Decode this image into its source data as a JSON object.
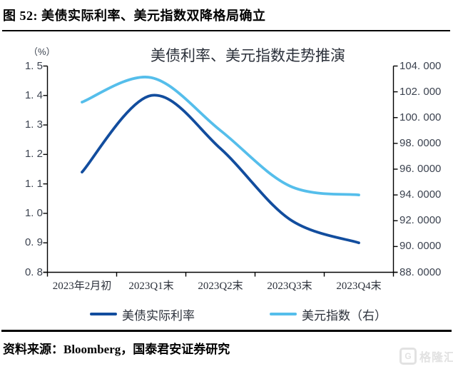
{
  "figure": {
    "caption": "图 52:  美债实际利率、美元指数双降格局确立",
    "source": "资料来源：Bloomberg，国泰君安证券研究"
  },
  "chart_data": {
    "type": "line",
    "title": "美债利率、美元指数走势推演",
    "unit_label": "（%）",
    "categories": [
      "2023年2月初",
      "2023Q1末",
      "2023Q2末",
      "2023Q3末",
      "2023Q4末"
    ],
    "series": [
      {
        "name": "美债实际利率",
        "axis": "left",
        "color": "#124d9e",
        "values": [
          1.14,
          1.4,
          1.22,
          0.98,
          0.9
        ]
      },
      {
        "name": "美元指数（右）",
        "axis": "right",
        "color": "#55beeb",
        "values": [
          101.2,
          103.1,
          99.0,
          94.7,
          94.0
        ]
      }
    ],
    "left_axis": {
      "min": 0.8,
      "max": 1.5,
      "ticks": [
        "1. 5",
        "1. 4",
        "1. 3",
        "1. 2",
        "1. 1",
        "1. 0",
        "0. 9",
        "0. 8"
      ]
    },
    "right_axis": {
      "min": 88.0,
      "max": 104.0,
      "ticks": [
        "104. 000",
        "102. 000",
        "100. 000",
        "98. 0000",
        "96. 0000",
        "94. 0000",
        "92. 0000",
        "90. 0000",
        "88. 0000"
      ]
    },
    "legend_position": "bottom",
    "grid": false,
    "axis_color": "#000000",
    "smooth_lines": true
  },
  "watermark": {
    "brand": "格隆汇",
    "icon_letter": "G"
  }
}
